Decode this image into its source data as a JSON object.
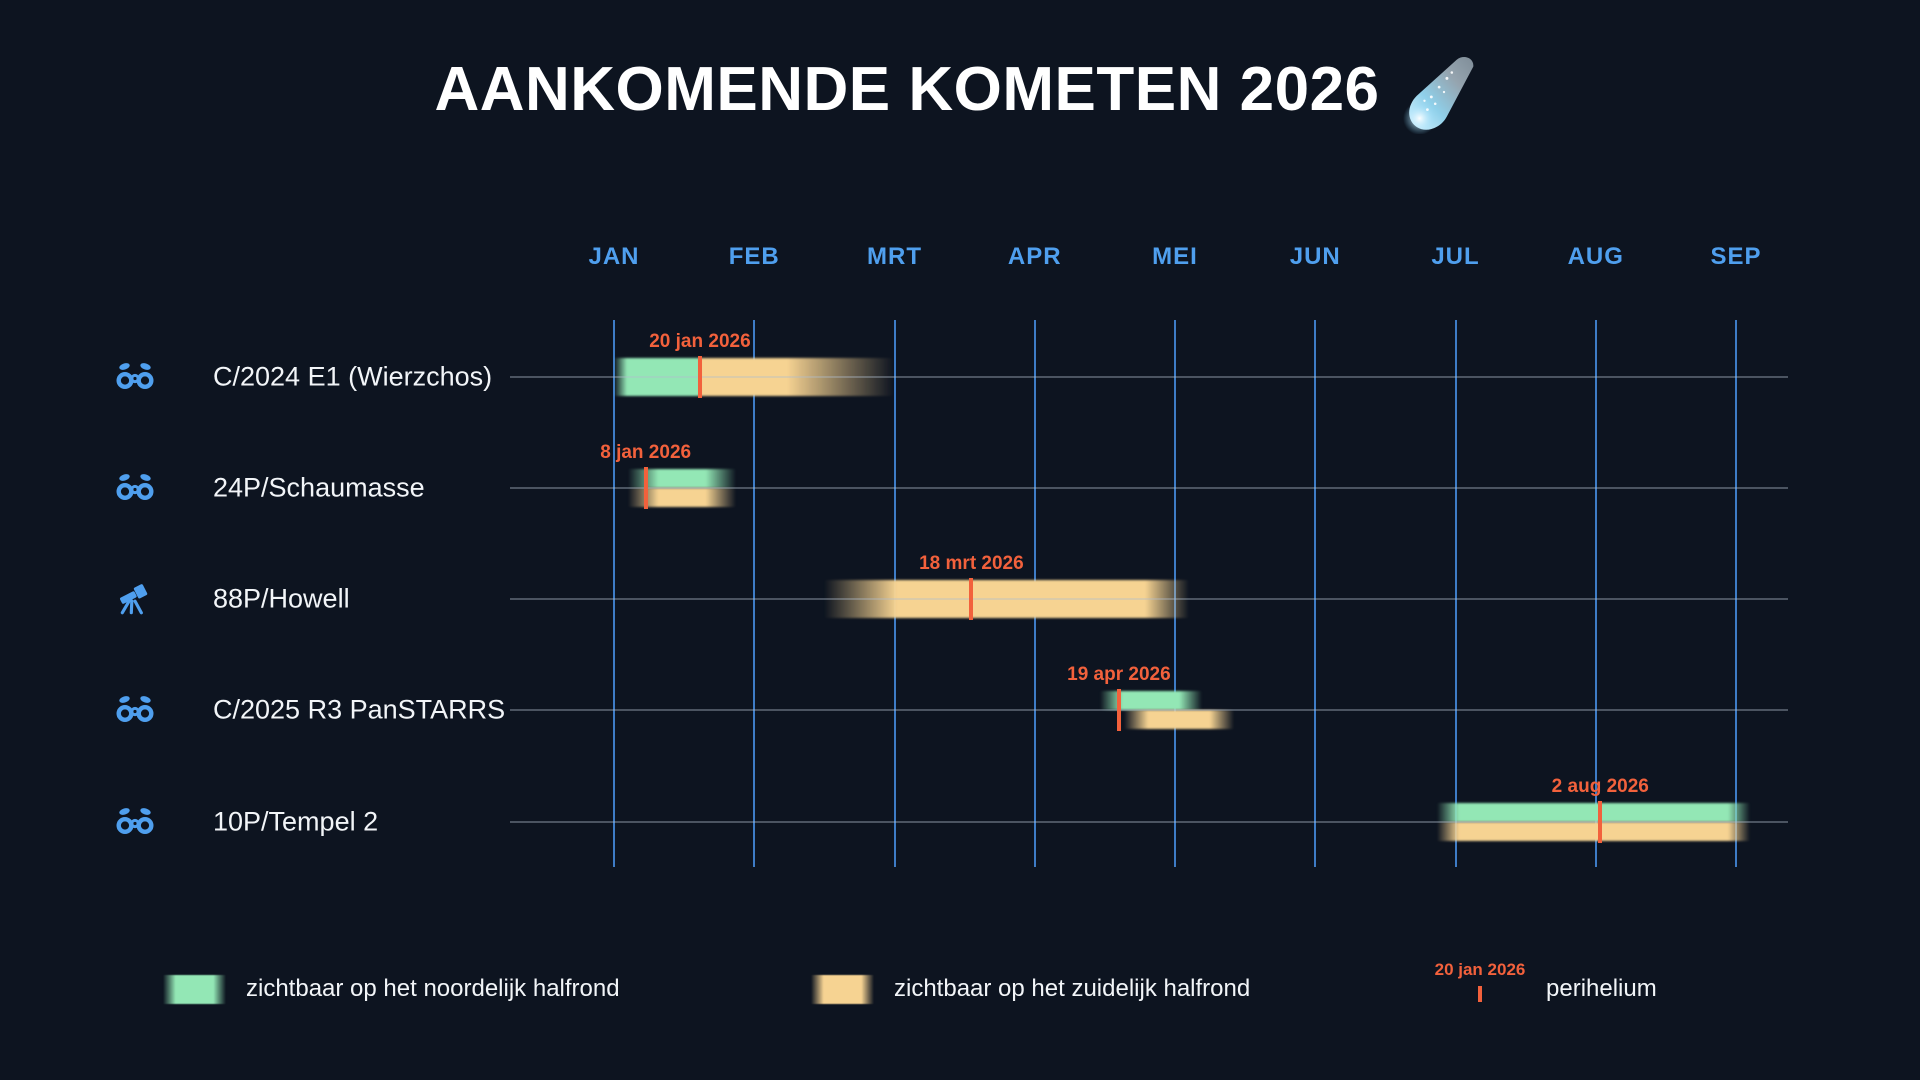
{
  "title": {
    "text": "AANKOMENDE KOMETEN 2026",
    "emoji": "comet"
  },
  "colors": {
    "background": "#0d1420",
    "north": "#93e7b5",
    "south": "#f6d392",
    "perihelion": "#f2613c",
    "month_label": "#4f9fee",
    "gridline": "#3e7cc6",
    "row_line": "rgba(175,190,205,0.38)",
    "row_label": "#f2f5f8",
    "icon": "#4f9fee"
  },
  "chart_data": {
    "type": "bar",
    "subtype": "gantt-timeline",
    "title": "AANKOMENDE KOMETEN 2026",
    "months": [
      "JAN",
      "FEB",
      "MRT",
      "APR",
      "MEI",
      "JUN",
      "JUL",
      "AUG",
      "SEP"
    ],
    "axis_note": "vertical gridlines mark the first day of each month, JAN-SEP 2026",
    "rows": [
      {
        "name": "C/2024 E1 (Wierzchos)",
        "icon": "binoculars",
        "stacked": false,
        "perihelion": {
          "label": "20 jan 2026",
          "date": "2026-01-20"
        },
        "periods": [
          {
            "hemisphere": "north",
            "start": "2026-01-01",
            "end": "2026-01-20",
            "lane": "full",
            "fade_in": 0.15,
            "fade_out": 0
          },
          {
            "hemisphere": "south",
            "start": "2026-01-20",
            "end": "2026-03-01",
            "lane": "full",
            "fade_in": 0,
            "fade_out": 0.55
          }
        ]
      },
      {
        "name": "24P/Schaumasse",
        "icon": "binoculars",
        "stacked": true,
        "perihelion": {
          "label": "8 jan 2026",
          "date": "2026-01-08"
        },
        "periods": [
          {
            "hemisphere": "north",
            "start": "2026-01-04",
            "end": "2026-01-28",
            "lane": "north-half",
            "fade_in": 0.28,
            "fade_out": 0.28
          },
          {
            "hemisphere": "south",
            "start": "2026-01-04",
            "end": "2026-01-28",
            "lane": "south-half",
            "fade_in": 0.28,
            "fade_out": 0.28
          }
        ]
      },
      {
        "name": "88P/Howell",
        "icon": "telescope",
        "stacked": false,
        "perihelion": {
          "label": "18 mrt 2026",
          "date": "2026-03-18"
        },
        "periods": [
          {
            "hemisphere": "south",
            "start": "2026-02-15",
            "end": "2026-05-04",
            "lane": "full",
            "fade_in": 0.2,
            "fade_out": 0.12
          }
        ]
      },
      {
        "name": "C/2025 R3 PanSTARRS",
        "icon": "binoculars",
        "stacked": true,
        "perihelion": {
          "label": "19 apr 2026",
          "date": "2026-04-19"
        },
        "periods": [
          {
            "hemisphere": "north",
            "start": "2026-04-15",
            "end": "2026-05-07",
            "lane": "north-half",
            "fade_in": 0.22,
            "fade_out": 0.22
          },
          {
            "hemisphere": "south",
            "start": "2026-04-20",
            "end": "2026-05-14",
            "lane": "south-half",
            "fade_in": 0.22,
            "fade_out": 0.22
          }
        ]
      },
      {
        "name": "10P/Tempel 2",
        "icon": "binoculars",
        "stacked": true,
        "perihelion": {
          "label": "2 aug 2026",
          "date": "2026-08-02"
        },
        "periods": [
          {
            "hemisphere": "north",
            "start": "2026-06-27",
            "end": "2026-09-04",
            "lane": "north-half",
            "fade_in": 0.07,
            "fade_out": 0.07
          },
          {
            "hemisphere": "south",
            "start": "2026-06-27",
            "end": "2026-09-04",
            "lane": "south-half",
            "fade_in": 0.07,
            "fade_out": 0.07
          }
        ]
      }
    ]
  },
  "legend": {
    "north": {
      "label": "zichtbaar op het noordelijk halfrond"
    },
    "south": {
      "label": "zichtbaar op het zuidelijk halfrond"
    },
    "perihelion": {
      "date_label": "20 jan 2026",
      "label": "perihelium"
    }
  }
}
